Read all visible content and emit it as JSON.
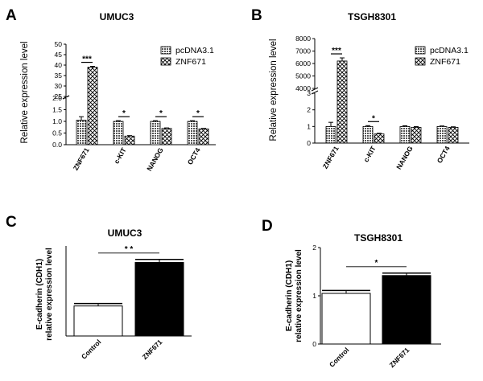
{
  "panels": {
    "A": {
      "label": "A",
      "title": "UMUC3"
    },
    "B": {
      "label": "B",
      "title": "TSGH8301"
    },
    "C": {
      "label": "C",
      "title": "UMUC3"
    },
    "D": {
      "label": "D",
      "title": "TSGH8301"
    }
  },
  "ylabel_ab": "Relative expression level",
  "ylabel_cd": [
    "E-cadherin (CDH1)",
    "relative expression level"
  ],
  "chart_data": [
    {
      "panel": "A",
      "type": "bar",
      "title": "UMUC3",
      "ylabel": "Relative expression level",
      "categories": [
        "ZNF671",
        "c-KIT",
        "NANOG",
        "OCT4"
      ],
      "series": [
        {
          "name": "pcDNA3.1",
          "values": [
            1.05,
            1.0,
            1.0,
            1.0
          ],
          "errors": [
            0.15,
            0.03,
            0.03,
            0.03
          ]
        },
        {
          "name": "ZNF671",
          "values": [
            39.0,
            0.37,
            0.7,
            0.68
          ],
          "errors": [
            0.4,
            0.02,
            0.02,
            0.02
          ]
        }
      ],
      "axis_break": {
        "lower_ylim": [
          0,
          2.0
        ],
        "upper_ylim": [
          25,
          50
        ]
      },
      "yticks_lower": [
        0.0,
        0.5,
        1.0,
        1.5,
        2.0
      ],
      "yticks_upper": [
        25,
        30,
        35,
        40,
        45,
        50
      ],
      "significance": [
        "***",
        "*",
        "*",
        "*"
      ],
      "legend": "top-right"
    },
    {
      "panel": "B",
      "type": "bar",
      "title": "TSGH8301",
      "ylabel": "Relative expression level",
      "categories": [
        "ZNF671",
        "c-KIT",
        "NANOG",
        "OCT4"
      ],
      "series": [
        {
          "name": "pcDNA3.1",
          "values": [
            1.0,
            1.0,
            1.0,
            1.0
          ],
          "errors": [
            0.25,
            0.05,
            0.04,
            0.03
          ]
        },
        {
          "name": "ZNF671",
          "values": [
            6200,
            0.55,
            0.95,
            0.95
          ],
          "errors": [
            250,
            0.04,
            0.04,
            0.03
          ]
        }
      ],
      "axis_break": {
        "lower_ylim": [
          0,
          3
        ],
        "upper_ylim": [
          4000,
          8000
        ]
      },
      "yticks_lower": [
        0,
        1,
        2,
        3
      ],
      "yticks_upper": [
        4000,
        5000,
        6000,
        7000,
        8000
      ],
      "significance": [
        "***",
        "*",
        "",
        ""
      ],
      "legend": "top-right"
    },
    {
      "panel": "C",
      "type": "bar",
      "title": "UMUC3",
      "ylabel": "E-cadherin (CDH1) relative expression level",
      "categories": [
        "Control",
        "ZNF671"
      ],
      "values": [
        1.0,
        2.45
      ],
      "errors": [
        0.08,
        0.1
      ],
      "colors": [
        "#ffffff",
        "#000000"
      ],
      "ylim": [
        0,
        3
      ],
      "yticks": [],
      "significance": "* *"
    },
    {
      "panel": "D",
      "type": "bar",
      "title": "TSGH8301",
      "ylabel": "E-cadherin (CDH1) relative expression level",
      "categories": [
        "Control",
        "ZNF671"
      ],
      "values": [
        1.05,
        1.42
      ],
      "errors": [
        0.06,
        0.05
      ],
      "colors": [
        "#ffffff",
        "#000000"
      ],
      "ylim": [
        0,
        2
      ],
      "yticks": [
        0,
        1,
        2
      ],
      "significance": "*"
    }
  ]
}
